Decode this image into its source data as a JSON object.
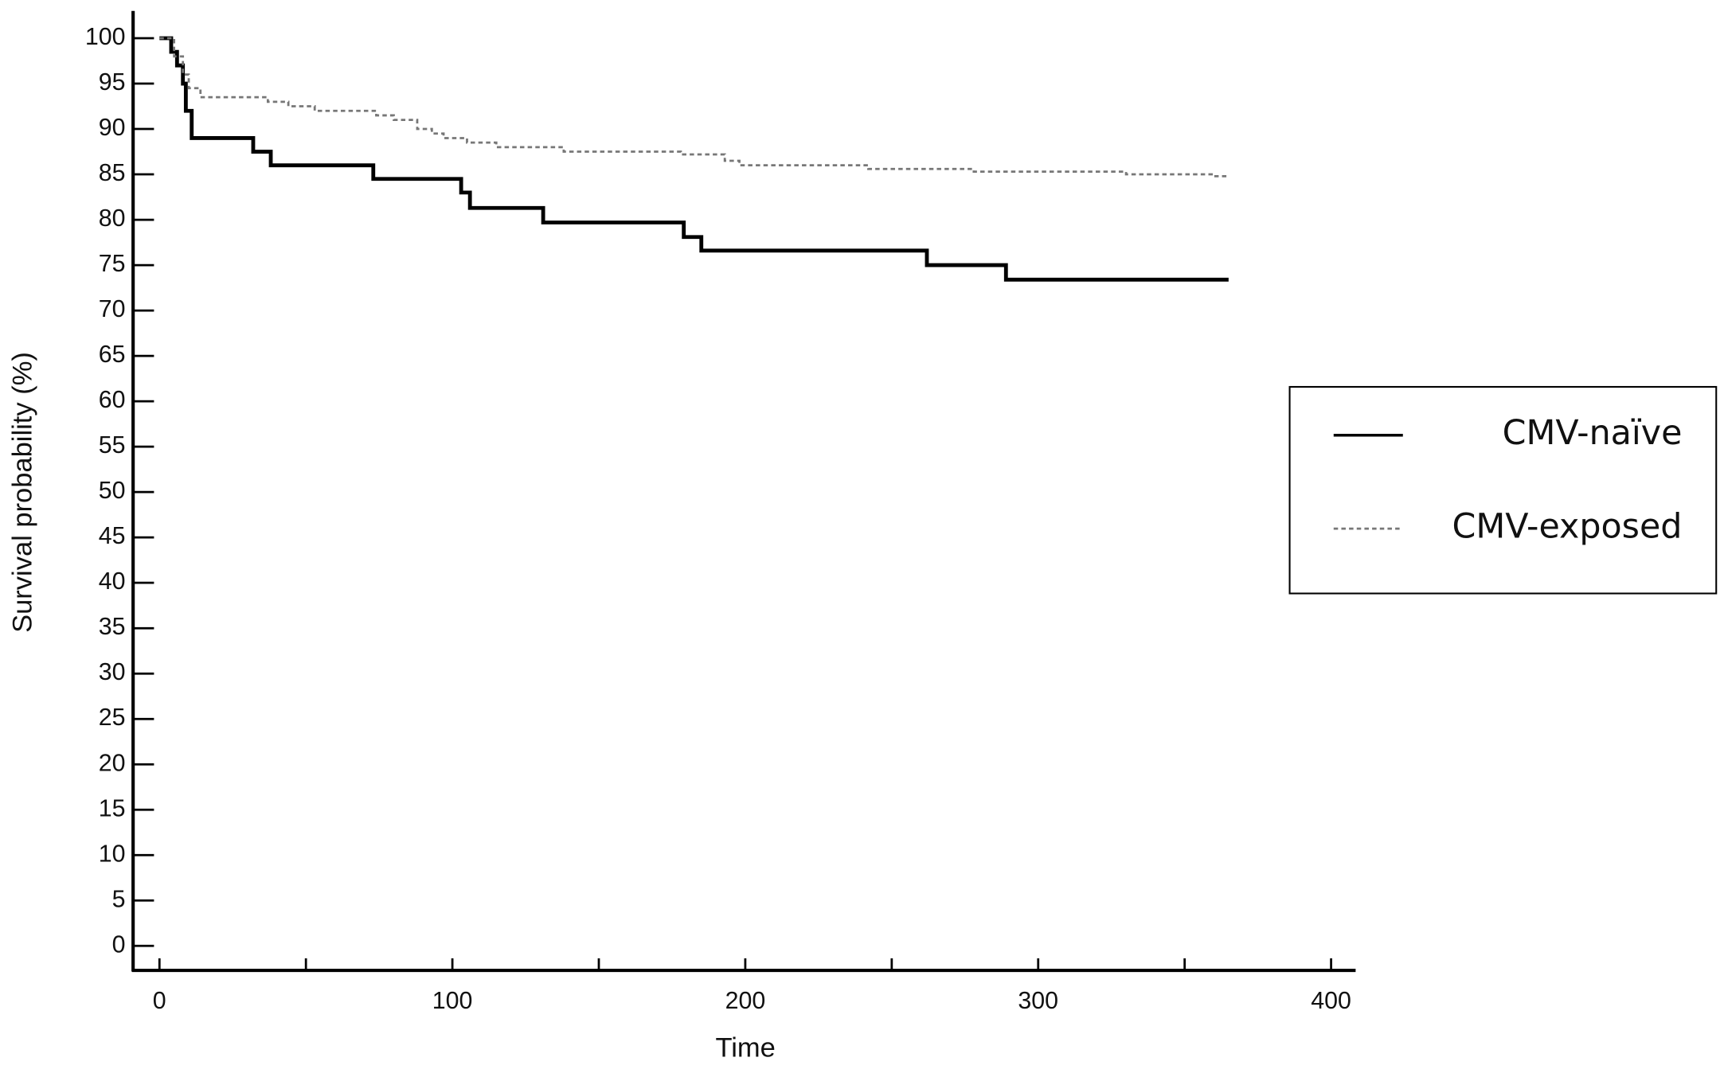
{
  "chart_data": {
    "type": "step",
    "xlabel": "Time",
    "ylabel": "Survival probability (%)",
    "xlim": [
      -9,
      408
    ],
    "ylim": [
      -2.7,
      103
    ],
    "xticks": [
      0,
      100,
      200,
      300,
      400
    ],
    "xminorticks": [
      50,
      150,
      250,
      350
    ],
    "yticks": [
      0,
      5,
      10,
      15,
      20,
      25,
      30,
      35,
      40,
      45,
      50,
      55,
      60,
      65,
      70,
      75,
      80,
      85,
      90,
      95,
      100
    ],
    "legend": "right",
    "series": [
      {
        "name": "CMV-naïve",
        "color": "#000000",
        "dash": false,
        "x": [
          0,
          4,
          6,
          8,
          9,
          11,
          32,
          38,
          73,
          103,
          106,
          131,
          179,
          185,
          262,
          289,
          365
        ],
        "values": [
          100,
          98.5,
          97,
          95,
          92,
          89,
          87.5,
          86,
          84.5,
          83,
          81.3,
          79.7,
          78.1,
          76.6,
          75,
          73.4,
          73.4
        ]
      },
      {
        "name": "CMV-exposed",
        "color": "#777777",
        "dash": true,
        "x": [
          0,
          5,
          8,
          10,
          14,
          37,
          44,
          53,
          74,
          80,
          88,
          93,
          97,
          105,
          115,
          138,
          178,
          193,
          198,
          242,
          278,
          330,
          360,
          365
        ],
        "values": [
          100,
          98,
          96,
          94.5,
          93.5,
          93,
          92.5,
          92,
          91.5,
          91,
          90,
          89.5,
          89,
          88.5,
          88,
          87.5,
          87.2,
          86.5,
          86,
          85.6,
          85.3,
          85,
          84.8,
          84.8
        ]
      }
    ]
  }
}
